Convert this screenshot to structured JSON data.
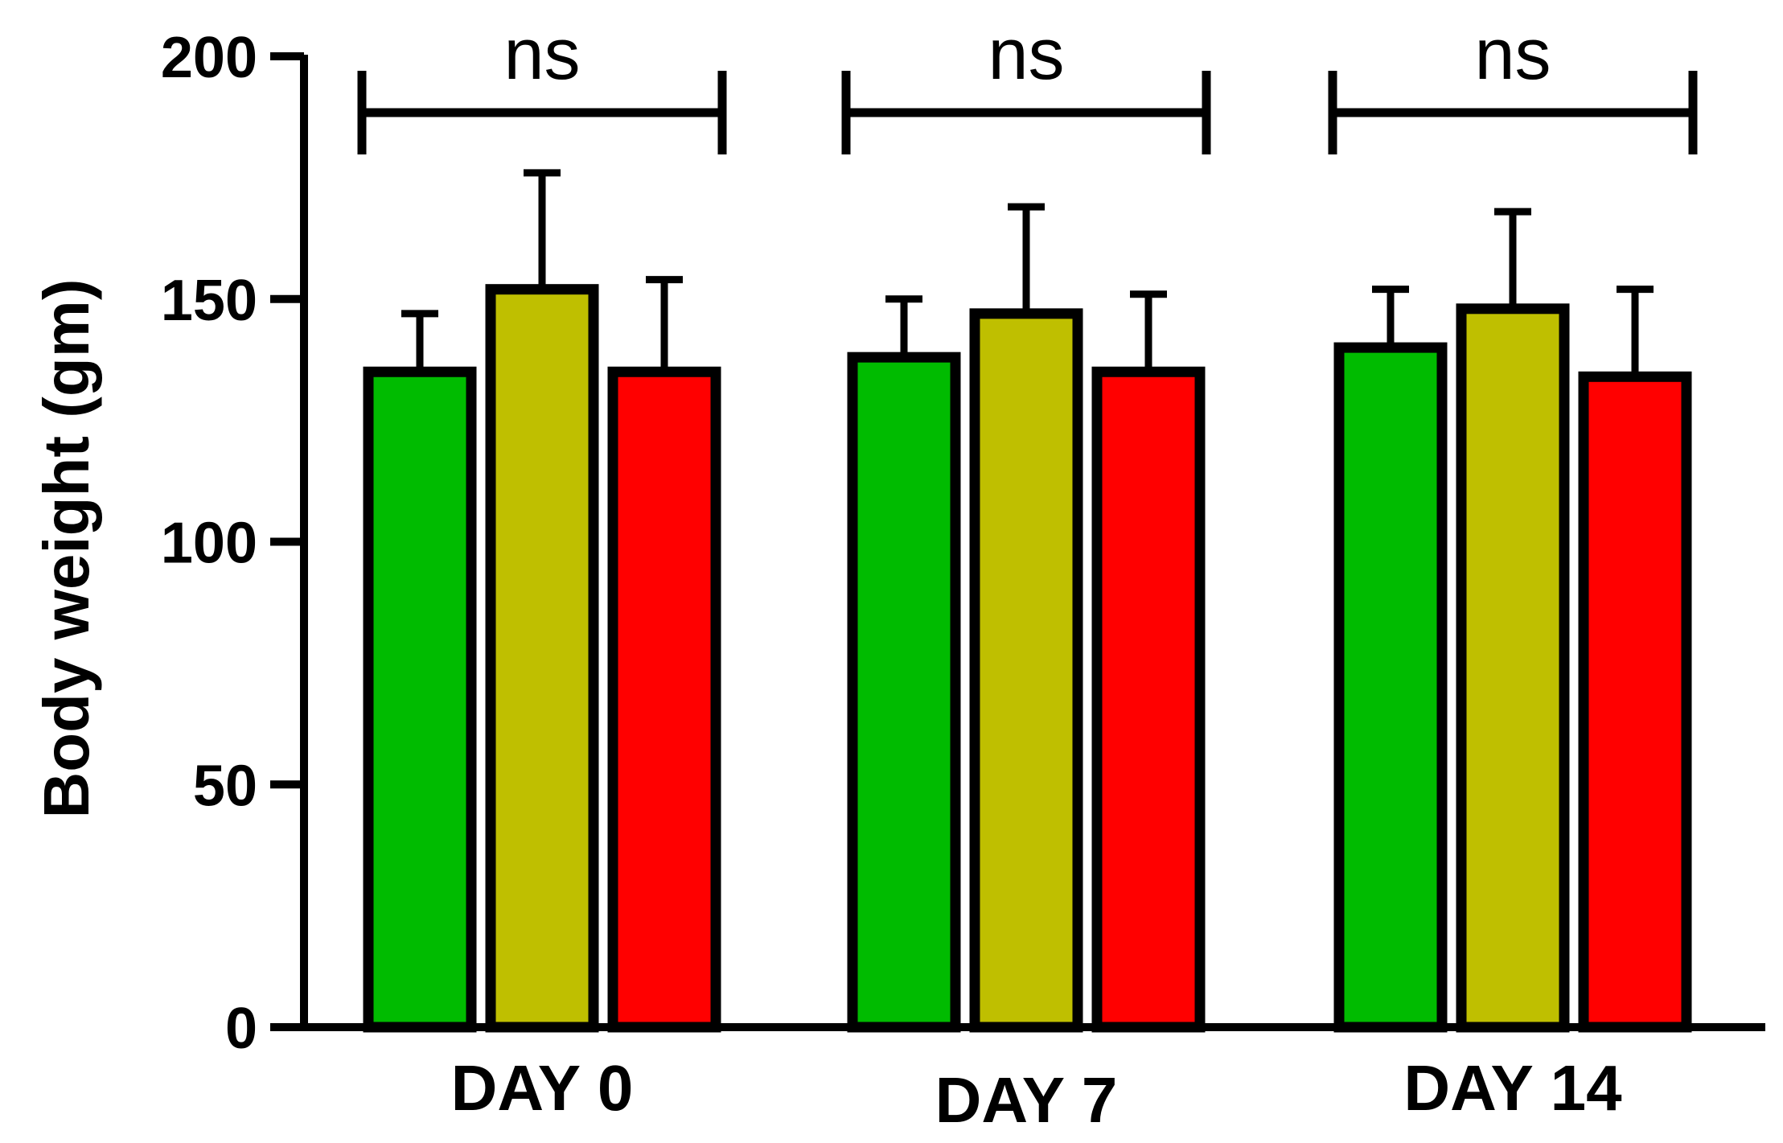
{
  "chart_data": {
    "type": "bar",
    "categories": [
      "DAY 0",
      "DAY 7",
      "DAY 14"
    ],
    "series": [
      {
        "values": [
          135,
          138,
          140
        ],
        "errors": [
          12,
          12,
          12
        ],
        "color": "#00bb00"
      },
      {
        "values": [
          152,
          147,
          148
        ],
        "errors": [
          24,
          22,
          20
        ],
        "color": "#bfbf00"
      },
      {
        "values": [
          135,
          135,
          134
        ],
        "errors": [
          19,
          16,
          18
        ],
        "color": "#ff0000"
      }
    ],
    "title": "",
    "xlabel": "",
    "ylabel": "Body weight (gm)",
    "ylim": [
      0,
      200
    ],
    "yticks": [
      0,
      50,
      100,
      150,
      200
    ],
    "ytick_labels": [
      "0",
      "50",
      "100",
      "150",
      "200"
    ],
    "significance": [
      "ns",
      "ns",
      "ns"
    ],
    "grid": false,
    "legend": "none"
  }
}
